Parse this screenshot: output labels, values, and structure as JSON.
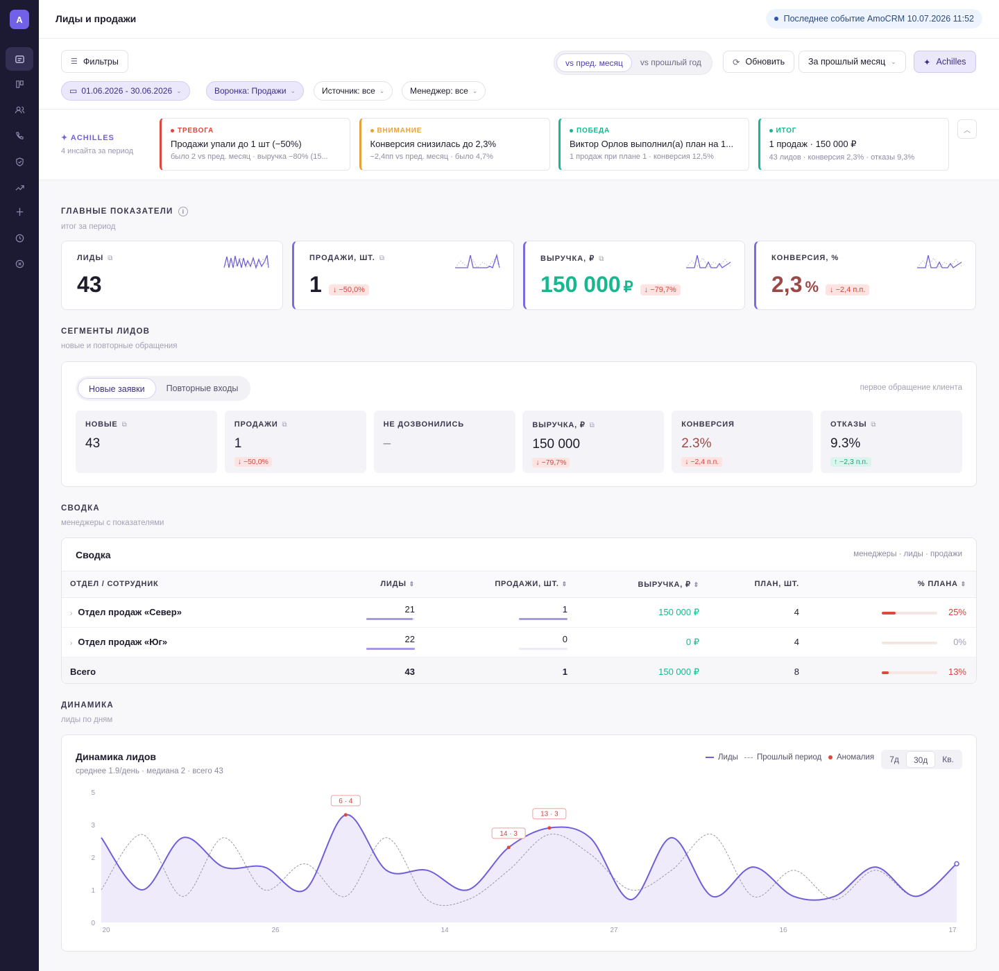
{
  "app": {
    "logo_letter": "A",
    "page_title": "Лиды и продажи",
    "last_event": "Последнее событие AmoCRM 10.07.2026 11:52"
  },
  "sidebar": {
    "icons": [
      "dashboard-icon",
      "kanban-icon",
      "users-icon",
      "phone-icon",
      "shield-icon",
      "trending-icon",
      "plus-icon",
      "clock-icon",
      "cancel-circle-icon"
    ]
  },
  "controls": {
    "filters": "Фильтры",
    "compare": [
      "vs пред. месяц",
      "vs прошлый год"
    ],
    "refresh": "Обновить",
    "period": "За прошлый месяц",
    "achilles": "Achilles",
    "chips": {
      "date": "01.06.2026 - 30.06.2026",
      "funnel": "Воронка: Продажи",
      "source": "Источник: все",
      "manager": "Менеджер: все"
    }
  },
  "insights": {
    "title": "ACHILLES",
    "subtitle": "4 инсайта за период",
    "cards": [
      {
        "label": "ТРЕВОГА",
        "headline": "Продажи упали до 1 шт (−50%)",
        "detail": "было 2 vs пред. месяц · выручка −80% (15...",
        "color": "#e0473c"
      },
      {
        "label": "ВНИМАНИЕ",
        "headline": "Конверсия снизилась до 2,3%",
        "detail": "−2,4пп vs пред. месяц · было 4,7%",
        "color": "#e6a23c"
      },
      {
        "label": "ПОБЕДА",
        "headline": "Виктор Орлов выполнил(а) план на 1...",
        "detail": "1 продаж при плане 1 · конверсия 12,5%",
        "color": "#17b890"
      },
      {
        "label": "ИТОГ",
        "headline": "1 продаж · 150 000 ₽",
        "detail": "43 лидов · конверсия 2,3% · отказы 9,3%",
        "color": "#17b890"
      }
    ]
  },
  "main_kpi": {
    "title": "ГЛАВНЫЕ ПОКАЗАТЕЛИ",
    "subtitle": "итог за период",
    "cards": [
      {
        "label": "ЛИДЫ",
        "value": "43",
        "unit": "",
        "delta": ""
      },
      {
        "label": "ПРОДАЖИ, ШТ.",
        "value": "1",
        "unit": "",
        "delta": "↓ −50,0%"
      },
      {
        "label": "ВЫРУЧКА, ₽",
        "value": "150 000",
        "unit": "₽",
        "delta": "↓ −79,7%"
      },
      {
        "label": "КОНВЕРСИЯ, %",
        "value": "2,3",
        "unit": "%",
        "delta": "↓ −2,4 п.п."
      }
    ]
  },
  "segments": {
    "title": "СЕГМЕНТЫ ЛИДОВ",
    "subtitle": "новые и повторные обращения",
    "tabs": [
      "Новые заявки",
      "Повторные входы"
    ],
    "note": "первое обращение клиента",
    "cards": [
      {
        "label": "НОВЫЕ",
        "value": "43",
        "delta": ""
      },
      {
        "label": "ПРОДАЖИ",
        "value": "1",
        "delta": "↓ −50,0%"
      },
      {
        "label": "НЕ ДОЗВОНИЛИСЬ",
        "value": "–",
        "delta": ""
      },
      {
        "label": "ВЫРУЧКА, ₽",
        "value": "150 000",
        "delta": "↓ −79,7%"
      },
      {
        "label": "КОНВЕРСИЯ",
        "value": "2.3%",
        "delta": "↓ −2,4 п.п."
      },
      {
        "label": "ОТКАЗЫ",
        "value": "9.3%",
        "delta": "↑ −2,3 п.п."
      }
    ]
  },
  "summary": {
    "title": "СВОДКА",
    "subtitle": "менеджеры с показателями",
    "panel_title": "Сводка",
    "panel_note": "менеджеры · лиды · продажи",
    "columns": [
      "ОТДЕЛ / СОТРУДНИК",
      "ЛИДЫ",
      "ПРОДАЖИ, ШТ.",
      "ВЫРУЧКА, ₽",
      "ПЛАН, ШТ.",
      "% ПЛАНА"
    ],
    "rows": [
      {
        "name": "Отдел продаж «Север»",
        "leads": "21",
        "sales": "1",
        "revenue": "150 000 ₽",
        "plan": "4",
        "pct": "25%",
        "leads_frac": 0.95,
        "sales_frac": 1.0,
        "pct_frac": 0.25
      },
      {
        "name": "Отдел продаж «Юг»",
        "leads": "22",
        "sales": "0",
        "revenue": "0 ₽",
        "plan": "4",
        "pct": "0%",
        "leads_frac": 1.0,
        "sales_frac": 0.0,
        "pct_frac": 0
      }
    ],
    "total": {
      "name": "Всего",
      "leads": "43",
      "sales": "1",
      "revenue": "150 000 ₽",
      "plan": "8",
      "pct": "13%",
      "pct_frac": 0.13
    }
  },
  "dynamics": {
    "title": "ДИНАМИКА",
    "subtitle": "лиды по дням",
    "panel_title": "Динамика лидов",
    "stats": "среднее 1.9/день · медиана 2 · всего 43",
    "legend": [
      "Лиды",
      "Прошлый период",
      "Аномалия"
    ],
    "ranges": [
      "7д",
      "30д",
      "Кв."
    ]
  },
  "chart_data": {
    "type": "line",
    "y_ticks": [
      "5",
      "3",
      "2",
      "1",
      "0"
    ],
    "x_ticks": [
      "20",
      "26",
      "14",
      "27",
      "16",
      "17"
    ],
    "series": [
      {
        "name": "Лиды",
        "values": [
          2.6,
          1.0,
          2.6,
          1.7,
          1.7,
          1.0,
          3.6,
          1.6,
          1.6,
          1.0,
          2.3,
          2.9,
          2.6,
          0.7,
          2.6,
          0.8,
          1.7,
          0.8,
          0.8,
          1.7,
          0.8,
          1.8
        ],
        "color": "#6f5ed8"
      },
      {
        "name": "Прошлый период",
        "values": [
          1.0,
          2.7,
          0.8,
          2.6,
          1.0,
          1.8,
          0.8,
          2.6,
          0.7,
          0.7,
          1.6,
          2.7,
          2.1,
          1.0,
          1.6,
          2.7,
          0.8,
          1.6,
          0.7,
          1.6,
          0.8,
          1.8
        ],
        "color": "#9a98ac"
      }
    ],
    "anomalies": [
      {
        "label": "6 · 4",
        "index": 6
      },
      {
        "label": "14 · 3",
        "index": 10
      },
      {
        "label": "13 · 3",
        "index": 11
      }
    ]
  }
}
